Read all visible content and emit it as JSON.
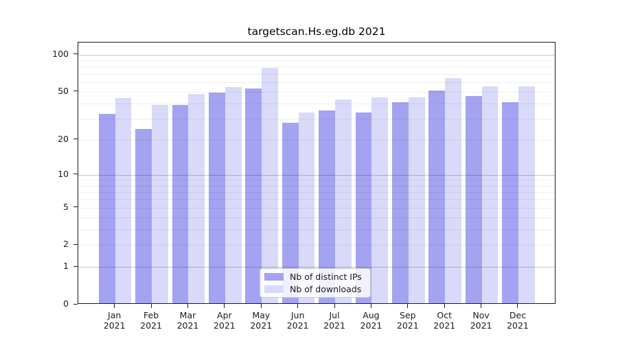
{
  "figure": {
    "title": "targetscan.Hs.eg.db 2021"
  },
  "chart_data": {
    "type": "bar",
    "title": "targetscan.Hs.eg.db 2021",
    "categories": [
      "Jan 2021",
      "Feb 2021",
      "Mar 2021",
      "Apr 2021",
      "May 2021",
      "Jun 2021",
      "Jul 2021",
      "Aug 2021",
      "Sep 2021",
      "Oct 2021",
      "Nov 2021",
      "Dec 2021"
    ],
    "series": [
      {
        "name": "Nb of distinct IPs",
        "color": "#a3a3f1",
        "values": [
          32,
          24,
          38,
          48,
          52,
          27,
          34,
          33,
          40,
          50,
          45,
          40
        ]
      },
      {
        "name": "Nb of downloads",
        "color": "#d9d9f9",
        "values": [
          43,
          38,
          47,
          53,
          76,
          33,
          42,
          44,
          44,
          63,
          54,
          54
        ]
      }
    ],
    "yscale": "log1p",
    "ylim": [
      0,
      125
    ],
    "y_ticks": [
      0,
      1,
      2,
      5,
      10,
      20,
      50,
      100
    ],
    "grid_minor": [
      2,
      3,
      4,
      5,
      6,
      7,
      8,
      9,
      20,
      30,
      40,
      50,
      60,
      70,
      80,
      90
    ],
    "grid_major": [
      1,
      10,
      100
    ],
    "xlabel": "",
    "ylabel": "",
    "legend": {
      "position": "lower center",
      "items": [
        "Nb of distinct IPs",
        "Nb of downloads"
      ]
    }
  }
}
